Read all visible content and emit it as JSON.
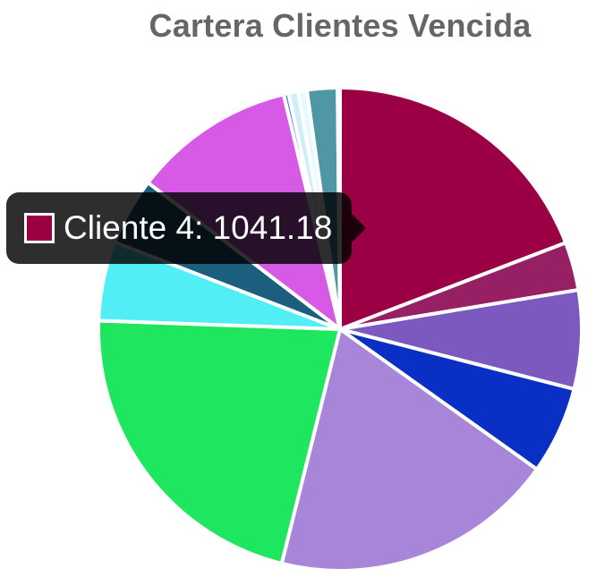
{
  "chart_data": {
    "type": "pie",
    "title": "Cartera Clientes Vencida",
    "slices": [
      {
        "name": "Cliente 4",
        "value": 1041.18,
        "color": "#9b0044"
      },
      {
        "value": 175,
        "color": "#962063"
      },
      {
        "value": 358,
        "color": "#7c59be"
      },
      {
        "value": 318,
        "color": "#0a2fc4"
      },
      {
        "value": 1034,
        "color": "#a786da"
      },
      {
        "value": 1177,
        "color": "#1fe65f"
      },
      {
        "value": 288,
        "color": "#52eef5"
      },
      {
        "value": 245,
        "color": "#1c5e7d"
      },
      {
        "value": 590,
        "color": "#d65ae6"
      },
      {
        "value": 18,
        "color": "#6c7fe3"
      },
      {
        "value": 35,
        "color": "#cfeefa"
      },
      {
        "value": 32,
        "color": "#e3fbff"
      },
      {
        "value": 110,
        "color": "#4f97a5"
      },
      {
        "value": 9,
        "color": "#f3f3f3"
      }
    ]
  },
  "tooltip": {
    "text": "Cliente 4: 1041.18",
    "swatch_color": "#9b0044"
  }
}
